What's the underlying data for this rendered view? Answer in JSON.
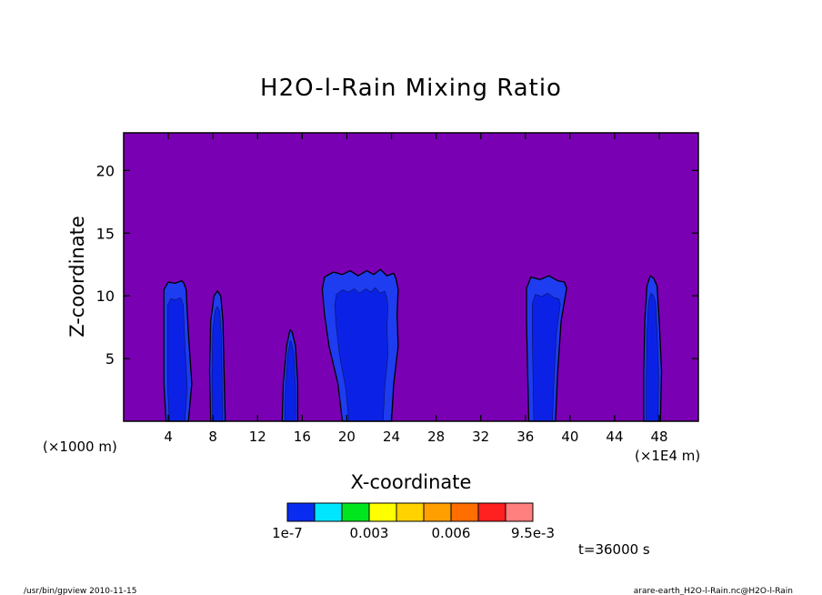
{
  "chart_data": {
    "type": "heatmap",
    "title": "H2O-l-Rain Mixing Ratio",
    "xlabel": "X-coordinate",
    "ylabel": "Z-coordinate",
    "x_unit_left": "(×1000 m)",
    "x_unit_right": "(×1E4 m)",
    "xlim": [
      0,
      51.5
    ],
    "ylim": [
      0,
      23
    ],
    "xticks": [
      4,
      8,
      12,
      16,
      20,
      24,
      28,
      32,
      36,
      40,
      44,
      48
    ],
    "yticks": [
      5,
      10,
      15,
      20
    ],
    "colorbar": {
      "colors": [
        "#0a2cf0",
        "#00e6ff",
        "#00e61e",
        "#ffff00",
        "#ffd200",
        "#ffa000",
        "#ff6e00",
        "#ff2020",
        "#ff7e7e"
      ],
      "labels": [
        {
          "text": "1e-7",
          "index": 0
        },
        {
          "text": "0.003",
          "index": 3
        },
        {
          "text": "0.006",
          "index": 6
        },
        {
          "text": "9.5e-3",
          "index": 9
        }
      ]
    },
    "background_color": "#7a00b4",
    "level1_color": "#1e3cf0",
    "level2_color": "#0b22e6",
    "regions": [
      {
        "left": [
          [
            3.8,
            0
          ],
          [
            3.6,
            3
          ],
          [
            3.6,
            8
          ],
          [
            3.6,
            10.5
          ],
          [
            4.0,
            11.1
          ],
          [
            4.6,
            11.0
          ],
          [
            5.2,
            11.2
          ]
        ],
        "right": [
          [
            5.8,
            0
          ],
          [
            6.1,
            3
          ],
          [
            5.8,
            7
          ],
          [
            5.6,
            10.5
          ],
          [
            5.4,
            11.0
          ]
        ]
      },
      {
        "left": [
          [
            7.8,
            0
          ],
          [
            7.7,
            4
          ],
          [
            7.8,
            8
          ],
          [
            8.1,
            10.0
          ],
          [
            8.4,
            10.4
          ]
        ],
        "right": [
          [
            9.1,
            0
          ],
          [
            9.0,
            4
          ],
          [
            8.9,
            8
          ],
          [
            8.7,
            10.0
          ]
        ]
      },
      {
        "left": [
          [
            14.2,
            0
          ],
          [
            14.3,
            3
          ],
          [
            14.6,
            6.0
          ],
          [
            14.9,
            7.3
          ]
        ],
        "right": [
          [
            15.6,
            0
          ],
          [
            15.6,
            3
          ],
          [
            15.4,
            6.0
          ],
          [
            15.1,
            7.1
          ]
        ]
      },
      {
        "left": [
          [
            19.6,
            0
          ],
          [
            19.2,
            3
          ],
          [
            18.4,
            6
          ],
          [
            18.0,
            8.5
          ],
          [
            17.8,
            10.5
          ],
          [
            18.0,
            11.5
          ],
          [
            18.8,
            11.9
          ],
          [
            19.6,
            11.7
          ],
          [
            20.3,
            12.0
          ],
          [
            21.0,
            11.6
          ],
          [
            21.8,
            12.0
          ],
          [
            22.4,
            11.7
          ],
          [
            23.0,
            12.1
          ],
          [
            23.6,
            11.6
          ],
          [
            24.2,
            11.8
          ]
        ],
        "right": [
          [
            24.0,
            0
          ],
          [
            24.2,
            3
          ],
          [
            24.6,
            6
          ],
          [
            24.5,
            8.5
          ],
          [
            24.6,
            10.5
          ],
          [
            24.4,
            11.4
          ]
        ]
      },
      {
        "left": [
          [
            36.3,
            0
          ],
          [
            36.2,
            4
          ],
          [
            36.1,
            8
          ],
          [
            36.1,
            10.6
          ],
          [
            36.5,
            11.5
          ],
          [
            37.3,
            11.3
          ],
          [
            38.1,
            11.6
          ],
          [
            38.9,
            11.2
          ]
        ],
        "right": [
          [
            38.7,
            0
          ],
          [
            38.9,
            4
          ],
          [
            39.2,
            8
          ],
          [
            39.7,
            10.6
          ],
          [
            39.5,
            11.1
          ]
        ]
      },
      {
        "left": [
          [
            46.6,
            0
          ],
          [
            46.6,
            4
          ],
          [
            46.7,
            8
          ],
          [
            46.9,
            10.8
          ],
          [
            47.2,
            11.6
          ]
        ],
        "right": [
          [
            48.1,
            0
          ],
          [
            48.2,
            4
          ],
          [
            48.0,
            8
          ],
          [
            47.8,
            10.8
          ],
          [
            47.5,
            11.4
          ]
        ]
      }
    ],
    "time_label": "t=36000 s"
  },
  "footer": {
    "left": "/usr/bin/gpview  2010-11-15",
    "right": "arare-earth_H2O-l-Rain.nc@H2O-l-Rain"
  }
}
